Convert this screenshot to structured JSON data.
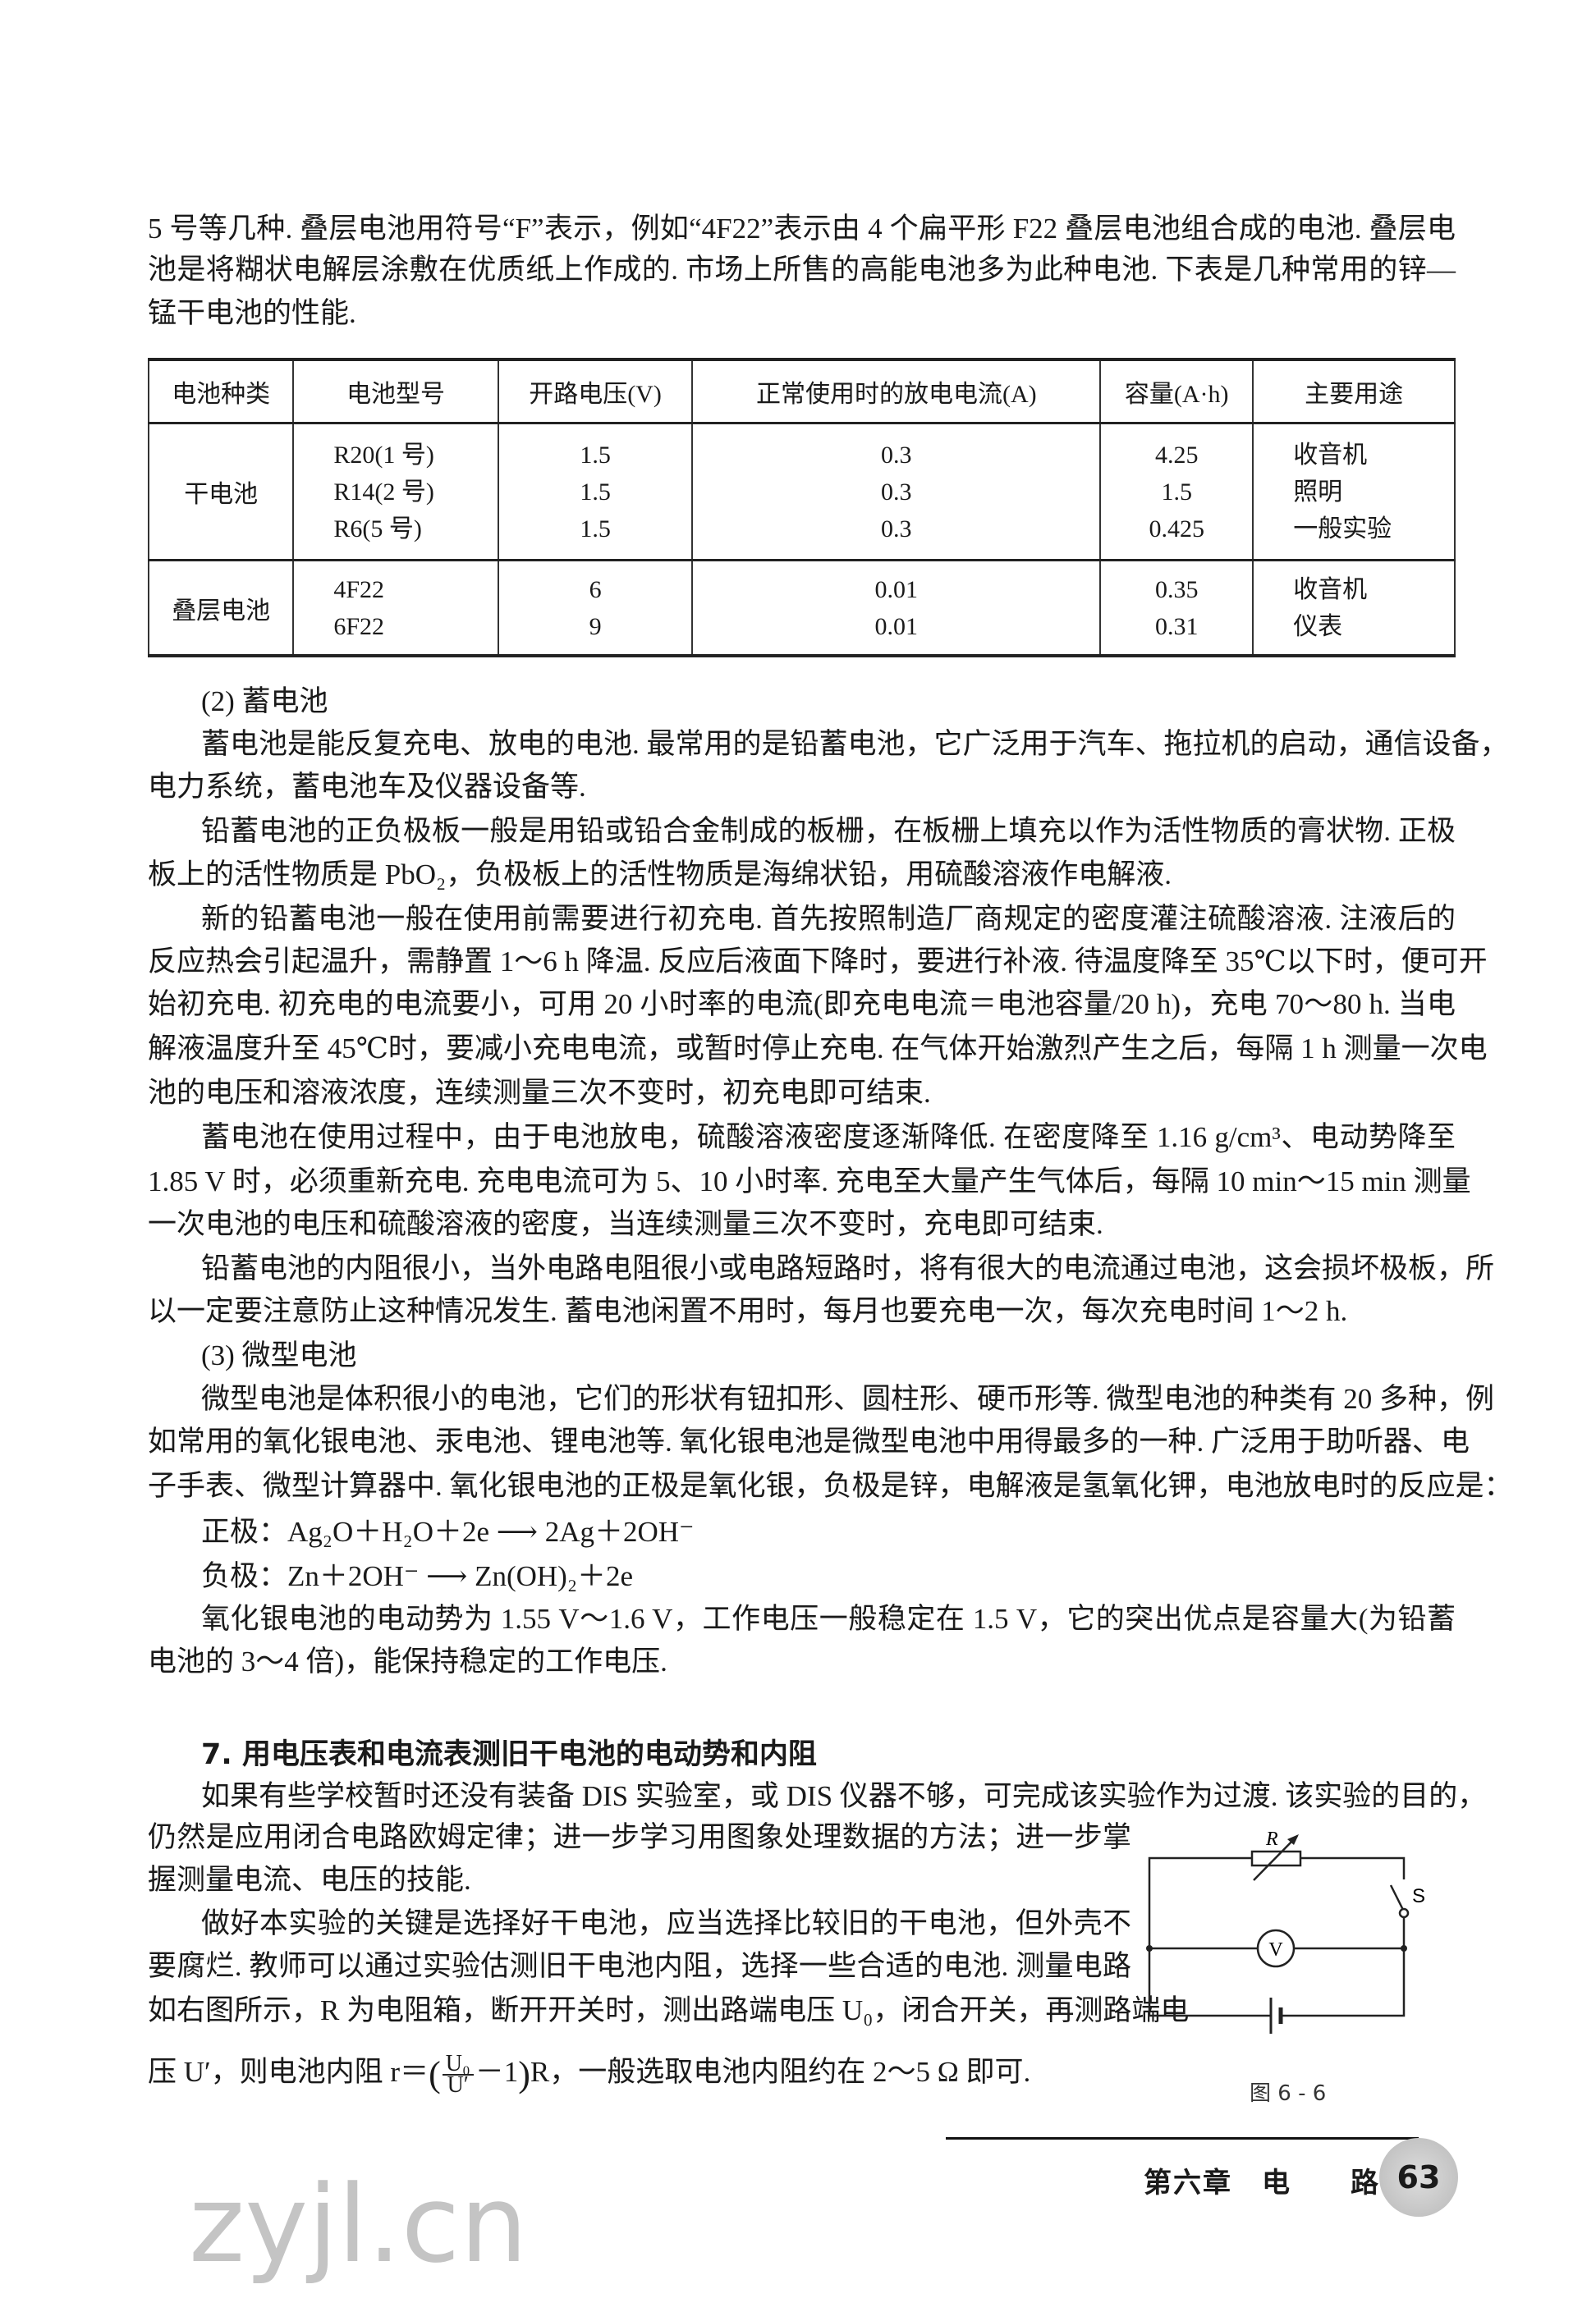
{
  "paragraph_lines": [
    "5 号等几种. 叠层电池用符号“F”表示，例如“4F22”表示由 4 个扁平形 F22 叠层电池组合成的电池. 叠层电",
    "池是将糊状电解层涂敷在优质纸上作成的. 市场上所售的高能电池多为此种电池. 下表是几种常用的锌—",
    "锰干电池的性能.",
    "(2) 蓄电池",
    "蓄电池是能反复充电、放电的电池. 最常用的是铅蓄电池，它广泛用于汽车、拖拉机的启动，通信设备，",
    "电力系统，蓄电池车及仪器设备等.",
    "铅蓄电池的正负极板一般是用铅或铅合金制成的板栅，在板栅上填充以作为活性物质的膏状物. 正极",
    "板上的活性物质是 PbO₂，负极板上的活性物质是海绵状铅，用硫酸溶液作电解液.",
    "新的铅蓄电池一般在使用前需要进行初充电. 首先按照制造厂商规定的密度灌注硫酸溶液. 注液后的",
    "反应热会引起温升，需静置 1～6 h 降温. 反应后液面下降时，要进行补液. 待温度降至 35℃以下时，便可开",
    "始初充电. 初充电的电流要小，可用 20 小时率的电流(即充电电流＝电池容量/20 h)，充电 70～80 h. 当电",
    "解液温度升至 45℃时，要减小充电电流，或暂时停止充电. 在气体开始激烈产生之后，每隔 1 h 测量一次电",
    "池的电压和溶液浓度，连续测量三次不变时，初充电即可结束.",
    "蓄电池在使用过程中，由于电池放电，硫酸溶液密度逐渐降低. 在密度降至 1.16 g/cm³、电动势降至",
    "1.85 V 时，必须重新充电. 充电电流可为 5、10 小时率. 充电至大量产生气体后，每隔 10 min～15 min 测量",
    "一次电池的电压和硫酸溶液的密度，当连续测量三次不变时，充电即可结束.",
    "铅蓄电池的内阻很小，当外电路电阻很小或电路短路时，将有很大的电流通过电池，这会损坏极板，所",
    "以一定要注意防止这种情况发生. 蓄电池闲置不用时，每月也要充电一次，每次充电时间 1～2 h.",
    "(3) 微型电池",
    "微型电池是体积很小的电池，它们的形状有钮扣形、圆柱形、硬币形等. 微型电池的种类有 20 多种，例",
    "如常用的氧化银电池、汞电池、锂电池等. 氧化银电池是微型电池中用得最多的一种. 广泛用于助听器、电",
    "子手表、微型计算器中. 氧化银电池的正极是氧化银，负极是锌，电解液是氢氧化钾，电池放电时的反应是：",
    "正极：Ag₂O＋H₂O＋2e ⟶ 2Ag＋2OH⁻",
    "负极：Zn＋2OH⁻ ⟶ Zn(OH)₂＋2e",
    "氧化银电池的电动势为 1.55 V～1.6 V，工作电压一般稳定在 1.5 V，它的突出优点是容量大(为铅蓄",
    "电池的 3～4 倍)，能保持稳定的工作电压.",
    "7. 用电压表和电流表测旧干电池的电动势和内阻",
    "如果有些学校暂时还没有装备 DIS 实验室，或 DIS 仪器不够，可完成该实验作为过渡. 该实验的目的，",
    "仍然是应用闭合电路欧姆定律；进一步学习用图象处理数据的方法；进一步掌",
    "握测量电流、电压的技能.",
    "做好本实验的关键是选择好干电池，应当选择比较旧的干电池，但外壳不",
    "要腐烂. 教师可以通过实验估测旧干电池内阻，选择一些合适的电池. 测量电路",
    "如右图所示，R 为电阻箱，断开开关时，测出路端电压 U₀，闭合开关，再测路端电"
  ],
  "formula_line": {
    "before": "压 U′，则电池内阻 r＝",
    "numerator": "U₀",
    "denominator": "U′",
    "inner": "－1",
    "after": "R，一般选取电池内阻约在 2～5 Ω 即可."
  },
  "table": {
    "headers": [
      "电池种类",
      "电池型号",
      "开路电压(V)",
      "正常使用时的放电电流(A)",
      "容量(A·h)",
      "主要用途"
    ],
    "groups": [
      {
        "type": "干电池",
        "rows": [
          [
            "R20(1 号)",
            "1.5",
            "0.3",
            "4.25",
            "收音机"
          ],
          [
            "R14(2 号)",
            "1.5",
            "0.3",
            "1.5",
            "照明"
          ],
          [
            "R6(5 号)",
            "1.5",
            "0.3",
            "0.425",
            "一般实验"
          ]
        ]
      },
      {
        "type": "叠层电池",
        "rows": [
          [
            "4F22",
            "6",
            "0.01",
            "0.35",
            "收音机"
          ],
          [
            "6F22",
            "9",
            "0.01",
            "0.31",
            "仪表"
          ]
        ]
      }
    ]
  },
  "figure": {
    "resistor_label": "R",
    "switch_label": "S",
    "voltmeter_label": "V",
    "caption": "图 6 - 6"
  },
  "footer": {
    "chapter": "第六章　电　　路",
    "page_number": "63"
  },
  "watermark": "zyjl.cn"
}
